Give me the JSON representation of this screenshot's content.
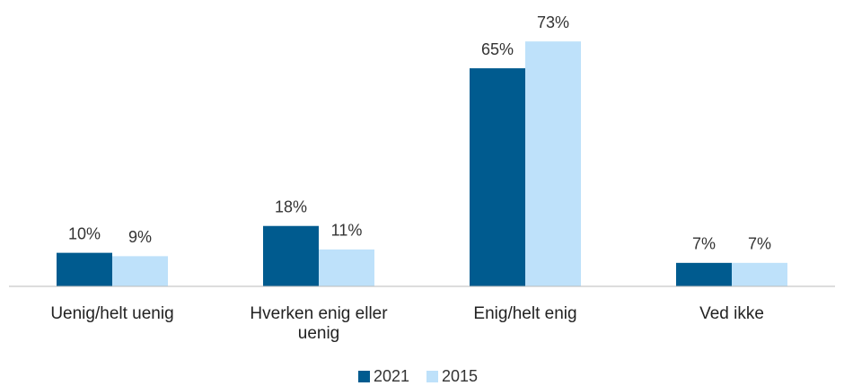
{
  "chart_data": {
    "type": "bar",
    "categories": [
      "Uenig/helt uenig",
      "Hverken enig eller uenig",
      "Enig/helt enig",
      "Ved ikke"
    ],
    "series": [
      {
        "name": "2021",
        "color": "#005b8f",
        "values": [
          10,
          18,
          65,
          7
        ],
        "value_labels": [
          "10%",
          "18%",
          "65%",
          "7%"
        ]
      },
      {
        "name": "2015",
        "color": "#bee1fa",
        "values": [
          9,
          11,
          73,
          7
        ],
        "value_labels": [
          "9%",
          "11%",
          "73%",
          "7%"
        ]
      }
    ],
    "ylim": [
      0,
      80
    ],
    "legend": "bottom"
  }
}
